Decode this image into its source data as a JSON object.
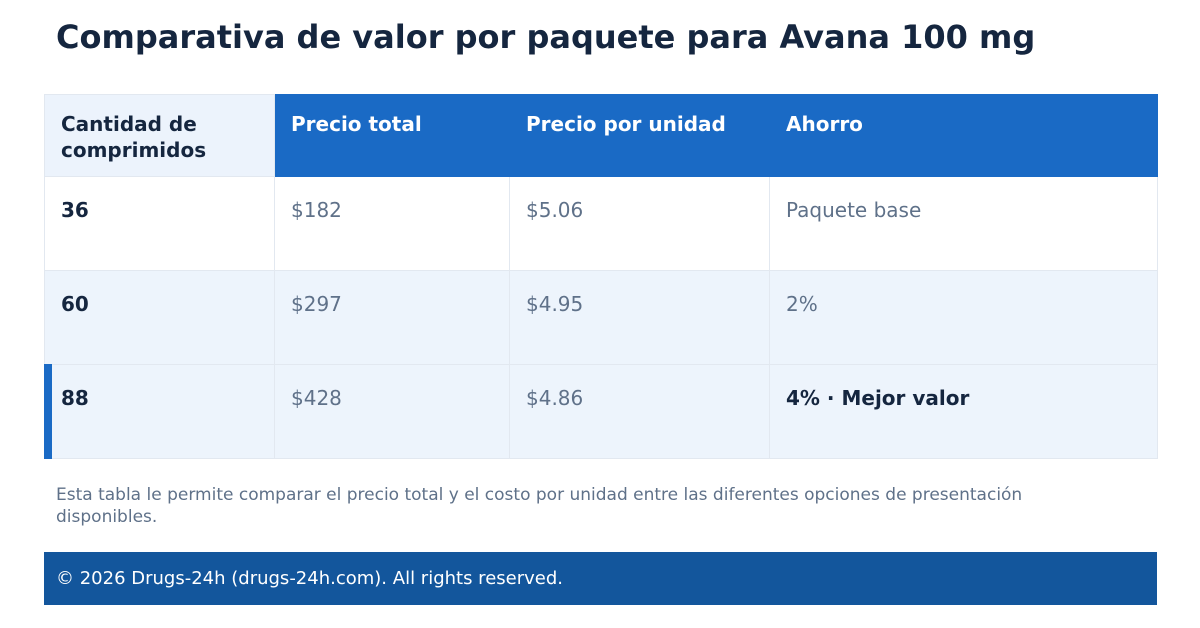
{
  "page": {
    "title": "Comparativa de valor por paquete para Avana 100 mg"
  },
  "table": {
    "headers": [
      "Cantidad de comprimidos",
      "Precio total",
      "Precio por unidad",
      "Ahorro"
    ],
    "rows": [
      {
        "quantity": "36",
        "total_price": "$182",
        "unit_price": "$5.06",
        "savings": "Paquete base"
      },
      {
        "quantity": "60",
        "total_price": "$297",
        "unit_price": "$4.95",
        "savings": "2%"
      },
      {
        "quantity": "88",
        "total_price": "$428",
        "unit_price": "$4.86",
        "savings": "4% · Mejor valor"
      }
    ],
    "highlighted_row": 2
  },
  "note": "Esta tabla le permite comparar el precio total y el costo por unidad entre las diferentes opciones de presentación disponibles.",
  "footer": {
    "text": "© 2026 Drugs-24h (drugs-24h.com). All rights reserved."
  },
  "colors": {
    "accent_blue": "#1a6ac5",
    "footer_blue": "#13569c",
    "title_text": "#15263f",
    "muted_text": "#5f7189",
    "row_tint": "#edf4fc"
  }
}
